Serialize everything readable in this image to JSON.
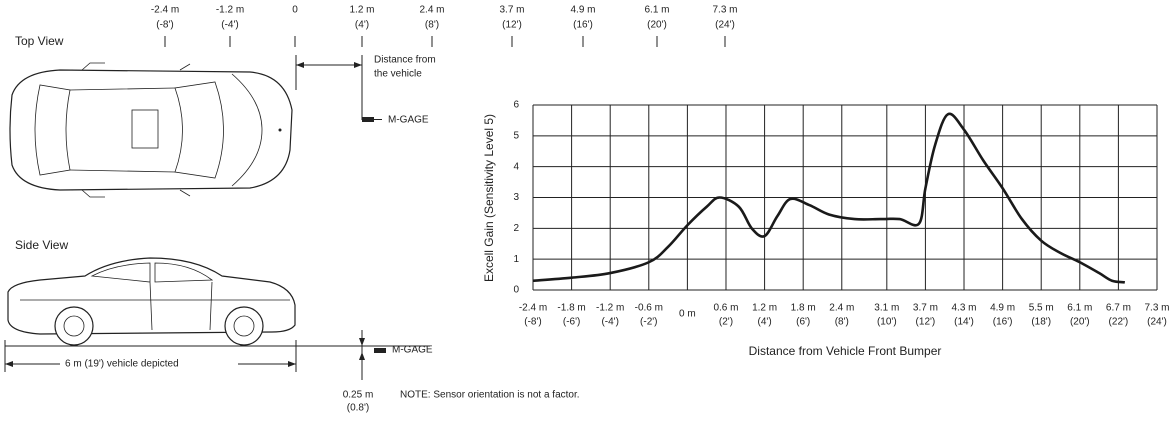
{
  "diagram": {
    "top_view": "Top View",
    "side_view": "Side View",
    "ruler": [
      {
        "metric": "-2.4 m",
        "feet": "(-8')"
      },
      {
        "metric": "-1.2 m",
        "feet": "(-4')"
      },
      {
        "metric": "0",
        "feet": null
      },
      {
        "metric": "1.2 m",
        "feet": "(4')"
      },
      {
        "metric": "2.4 m",
        "feet": "(8')"
      },
      {
        "metric": "3.7 m",
        "feet": "(12')"
      },
      {
        "metric": "4.9 m",
        "feet": "(16')"
      },
      {
        "metric": "6.1 m",
        "feet": "(20')"
      },
      {
        "metric": "7.3 m",
        "feet": "(24')"
      }
    ],
    "distance_note": [
      "Distance from",
      "the vehicle"
    ],
    "sensor_top": "M-GAGE",
    "sensor_side": "M-GAGE",
    "vehicle_length": "6 m (19')  vehicle depicted",
    "height": [
      "0.25 m",
      "(0.8')"
    ],
    "note": "NOTE: Sensor orientation is not a factor."
  },
  "chart_data": {
    "type": "line",
    "y_label": "Excell Gain (Sensitivity Level 5)",
    "x_label": "Distance from Vehicle Front Bumper",
    "xlim": [
      -2.4,
      7.3
    ],
    "xticks": [
      {
        "value": -2.4,
        "label": "-2.4 m"
      },
      {
        "value": -1.8,
        "label": "-1.8 m"
      },
      {
        "value": -1.2,
        "label": "-1.2 m"
      },
      {
        "value": -0.6,
        "label": "-0.6 m"
      },
      {
        "value": 0,
        "label": "0 m"
      },
      {
        "value": 0.6,
        "label": "0.6 m"
      },
      {
        "value": 1.2,
        "label": "1.2 m"
      },
      {
        "value": 1.8,
        "label": "1.8 m"
      },
      {
        "value": 2.4,
        "label": "2.4 m"
      },
      {
        "value": 3.1,
        "label": "3.1 m"
      },
      {
        "value": 3.7,
        "label": "3.7 m"
      },
      {
        "value": 4.3,
        "label": "4.3 m"
      },
      {
        "value": 4.9,
        "label": "4.9 m"
      },
      {
        "value": 5.5,
        "label": "5.5 m"
      },
      {
        "value": 6.1,
        "label": "6.1 m"
      },
      {
        "value": 6.7,
        "label": "6.7 m"
      },
      {
        "value": 7.3,
        "label": "7.3 m"
      }
    ],
    "xtick_feet_labels": [
      "(-8')",
      "(-6')",
      "(-4')",
      "(-2')",
      null,
      "(2')",
      "(4')",
      "(6')",
      "(8')",
      "(10')",
      "(12')",
      "(14')",
      "(16')",
      "(18')",
      "(20')",
      "(22')",
      "(24')"
    ],
    "ylim": [
      0,
      6
    ],
    "yticks": [
      0,
      1,
      2,
      3,
      4,
      5,
      6
    ],
    "grid": true,
    "color": "#1a1a1a",
    "x": [
      -2.4,
      -1.8,
      -1.2,
      -0.6,
      -0.3,
      0,
      0.3,
      0.5,
      0.8,
      1.0,
      1.2,
      1.4,
      1.6,
      1.9,
      2.2,
      2.6,
      3.0,
      3.3,
      3.6,
      3.7,
      3.85,
      4.05,
      4.3,
      4.6,
      4.9,
      5.2,
      5.5,
      5.8,
      6.1,
      6.4,
      6.6,
      6.8
    ],
    "values": [
      0.3,
      0.4,
      0.55,
      0.9,
      1.4,
      2.1,
      2.7,
      3.0,
      2.7,
      2.0,
      1.75,
      2.4,
      2.95,
      2.75,
      2.45,
      2.3,
      2.3,
      2.3,
      2.15,
      3.3,
      4.7,
      5.7,
      5.2,
      4.2,
      3.3,
      2.3,
      1.6,
      1.2,
      0.9,
      0.55,
      0.3,
      0.25
    ]
  }
}
